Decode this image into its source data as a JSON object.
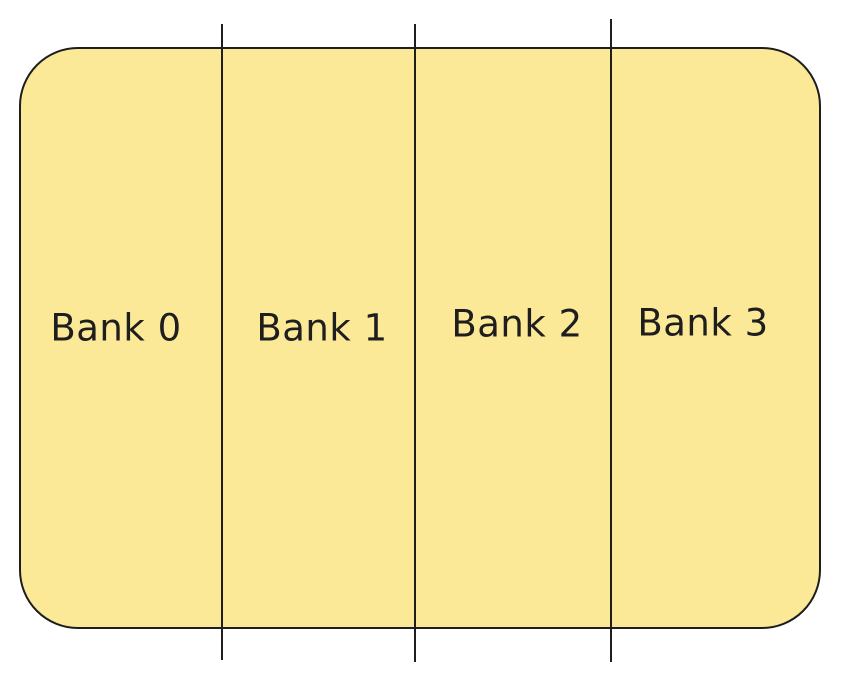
{
  "diagram": {
    "container_color": "#fce998",
    "stroke_color": "#1e1e1e",
    "banks": [
      {
        "label": "Bank 0"
      },
      {
        "label": "Bank 1"
      },
      {
        "label": "Bank 2"
      },
      {
        "label": "Bank 3"
      }
    ]
  }
}
